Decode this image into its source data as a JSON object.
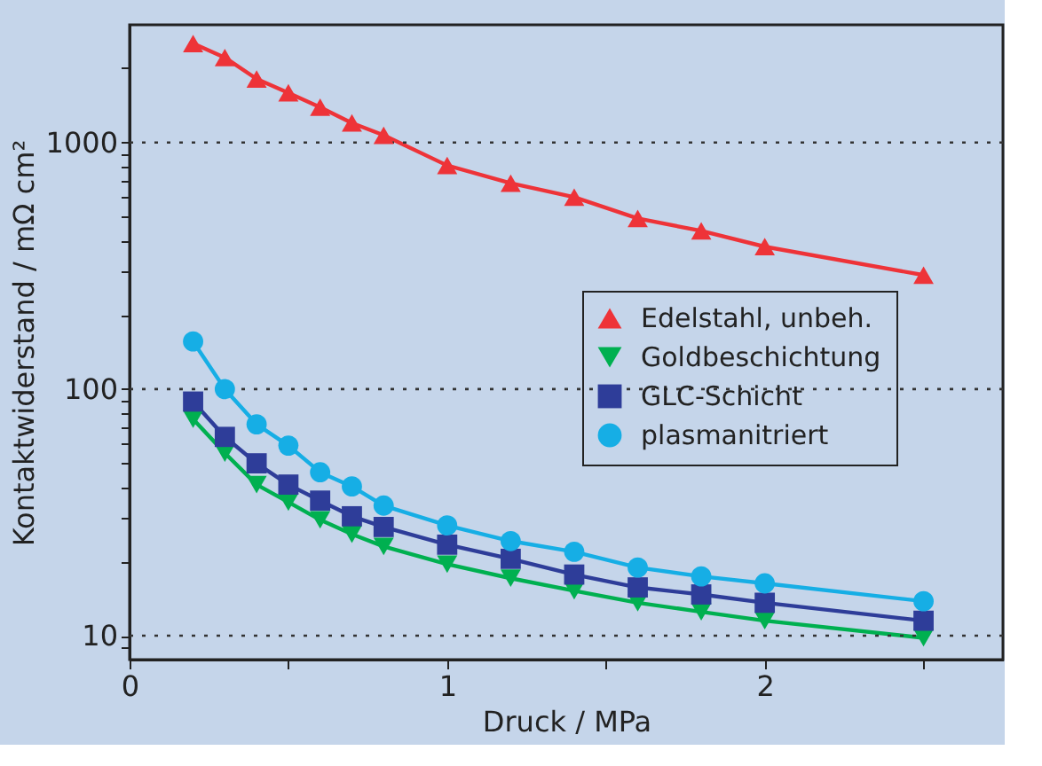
{
  "chart_data": {
    "type": "line",
    "xlabel": "Druck / MPa",
    "ylabel": "Kontaktwiderstand / mΩ cm²",
    "x": [
      0.2,
      0.3,
      0.4,
      0.5,
      0.6,
      0.7,
      0.8,
      1.0,
      1.2,
      1.4,
      1.6,
      1.8,
      2.0,
      2.5
    ],
    "series": [
      {
        "name": "Edelstahl, unbeh.",
        "color": "#ee3338",
        "marker": "triangle",
        "values": [
          2520,
          2210,
          1810,
          1590,
          1390,
          1200,
          1070,
          807,
          684,
          600,
          492,
          438,
          378,
          290
        ]
      },
      {
        "name": "Goldbeschichtung",
        "color": "#00b050",
        "marker": "triangle-down",
        "values": [
          75.5,
          55,
          41,
          34.8,
          29.5,
          25.8,
          23,
          19.5,
          17.1,
          15.2,
          13.6,
          12.5,
          11.5,
          9.8
        ]
      },
      {
        "name": "GLC-Schicht",
        "color": "#2e3d99",
        "marker": "square",
        "values": [
          89,
          64,
          50,
          41,
          35.3,
          30.5,
          27.6,
          23.4,
          20.5,
          17.7,
          15.7,
          14.7,
          13.6,
          11.5
        ]
      },
      {
        "name": "plasmanitriert",
        "color": "#16aee5",
        "marker": "circle",
        "values": [
          156,
          100,
          72,
          59,
          46,
          40.3,
          33.7,
          28,
          24.2,
          21.9,
          18.9,
          17.4,
          16.3,
          13.8
        ]
      }
    ],
    "log": "y",
    "xlim": [
      0,
      2.75
    ],
    "ylim": [
      8,
      3000
    ],
    "xticks": [
      0,
      {
        "value": 0.5,
        "label": null
      },
      1,
      {
        "value": 1.5,
        "label": null
      },
      2,
      {
        "value": 2.5,
        "label": null
      }
    ],
    "yticks": [
      {
        "value": 9,
        "label": null
      },
      10,
      {
        "value": 20,
        "label": null
      },
      {
        "value": 30,
        "label": null
      },
      {
        "value": 40,
        "label": null
      },
      {
        "value": 50,
        "label": null
      },
      {
        "value": 60,
        "label": null
      },
      {
        "value": 70,
        "label": null
      },
      {
        "value": 80,
        "label": null
      },
      {
        "value": 90,
        "label": null
      },
      100,
      {
        "value": 200,
        "label": null
      },
      {
        "value": 300,
        "label": null
      },
      {
        "value": 400,
        "label": null
      },
      {
        "value": 500,
        "label": null
      },
      {
        "value": 600,
        "label": null
      },
      {
        "value": 700,
        "label": null
      },
      {
        "value": 800,
        "label": null
      },
      {
        "value": 900,
        "label": null
      },
      1000,
      {
        "value": 2000,
        "label": null
      }
    ],
    "grid": "y",
    "legend": "right",
    "line_style": "solid"
  }
}
